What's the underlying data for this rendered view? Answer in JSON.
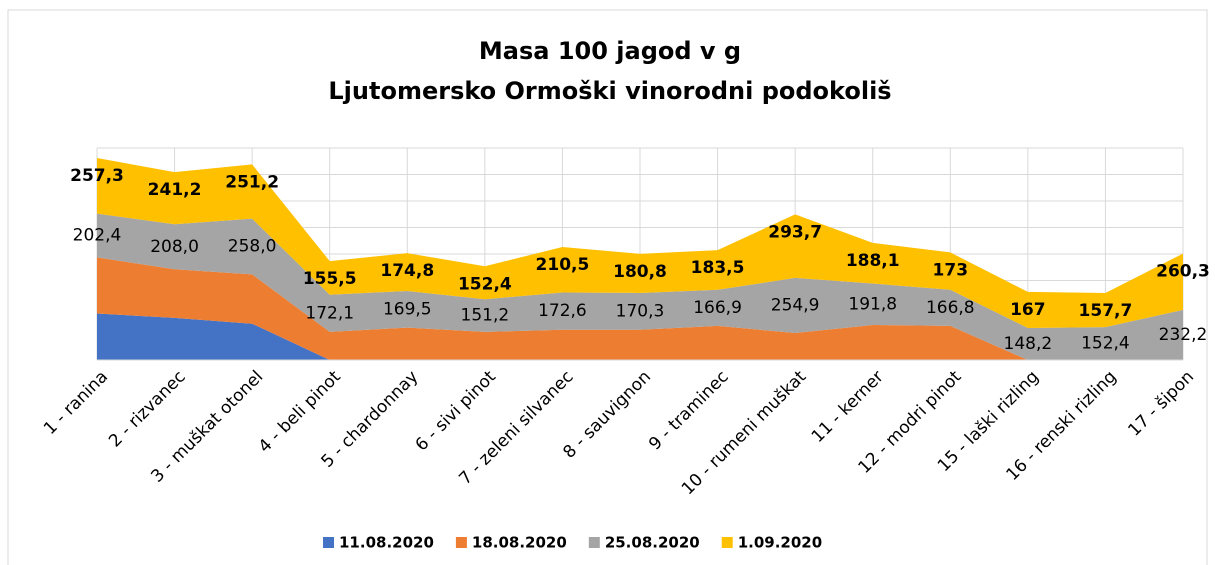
{
  "chart_data": {
    "type": "stacked_area",
    "title": "Masa 100 jagod v g",
    "subtitle": "Ljutomersko Ormoški vinorodni podokoliš",
    "categories": [
      "1 - ranina",
      "2 - rizvanec",
      "3 - muškat otonel",
      "4 - beli pinot",
      "5 - chardonnay",
      "6 - sivi pinot",
      "7 - zeleni silvanec",
      "8 - sauvignon",
      "9 - traminec",
      "10 - rumeni muškat",
      "11 - kerner",
      "12 - modri pinot",
      "15 - laški rizling",
      "16 - renski rizling",
      "17 - šipon"
    ],
    "series": [
      {
        "name": "11.08.2020",
        "color": "#4472c4",
        "values": [
          215,
          195,
          168,
          0,
          0,
          0,
          0,
          0,
          0,
          0,
          0,
          0,
          0,
          0,
          0
        ]
      },
      {
        "name": "18.08.2020",
        "color": "#ed7d31",
        "values": [
          260,
          225,
          228,
          130,
          150,
          130,
          140,
          140,
          158,
          125,
          162,
          158,
          0,
          0,
          0
        ]
      },
      {
        "name": "25.08.2020",
        "color": "#a5a5a5",
        "values": [
          202.4,
          208.0,
          258.0,
          172.1,
          169.5,
          151.2,
          172.6,
          170.3,
          166.9,
          254.9,
          191.8,
          166.8,
          148.2,
          152.4,
          232.2
        ],
        "value_labels": [
          "202,4",
          "208,0",
          "258,0",
          "172,1",
          "169,5",
          "151,2",
          "172,6",
          "170,3",
          "166,9",
          "254,9",
          "191,8",
          "166,8",
          "148,2",
          "152,4",
          "232,2"
        ]
      },
      {
        "name": "1.09.2020",
        "color": "#ffc000",
        "values": [
          257.3,
          241.2,
          251.2,
          155.5,
          174.8,
          152.4,
          210.5,
          180.8,
          183.5,
          293.7,
          188.1,
          173,
          167,
          157.7,
          260.3
        ],
        "value_labels": [
          "257,3",
          "241,2",
          "251,2",
          "155,5",
          "174,8",
          "152,4",
          "210,5",
          "180,8",
          "183,5",
          "293,7",
          "188,1",
          "173",
          "167",
          "157,7",
          "260,3"
        ]
      }
    ]
  }
}
